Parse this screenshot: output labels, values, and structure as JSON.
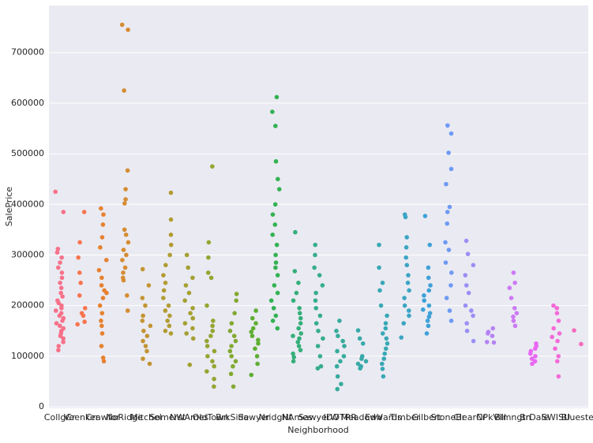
{
  "chart_data": {
    "type": "strip",
    "x_label": "Neighborhood",
    "y_label": "SalePrice",
    "categories": [
      "CollgCr",
      "Veenker",
      "Crawfor",
      "NoRidge",
      "Mitchel",
      "Somerst",
      "NWAmes",
      "OldTown",
      "BrkSide",
      "Sawyer",
      "NridgHt",
      "NAmes",
      "SawyerW",
      "IDOTRR",
      "MeadowV",
      "Edwards",
      "Timber",
      "Gilbert",
      "StoneBr",
      "ClearCr",
      "NPkVill",
      "Blmngtn",
      "BrDale",
      "SWISU",
      "Blueste"
    ],
    "colors": [
      "#f77189",
      "#f7754f",
      "#e6812f",
      "#d58c32",
      "#c39532",
      "#b29c32",
      "#a4a031",
      "#95a531",
      "#82a931",
      "#5eae31",
      "#32b252",
      "#34af7a",
      "#35ad8e",
      "#36ab9c",
      "#37aaa9",
      "#38a8b5",
      "#3ba5c3",
      "#3ea1d8",
      "#6e9af4",
      "#9a8ff4",
      "#b583f4",
      "#cc79f4",
      "#e867f4",
      "#f46ad8",
      "#f56bbe"
    ],
    "values": [
      [
        425000,
        385000,
        312000,
        305000,
        295000,
        285000,
        275000,
        265000,
        255000,
        245000,
        235000,
        225000,
        218000,
        210000,
        205000,
        200000,
        195000,
        190000,
        185000,
        180000,
        175000,
        170000,
        165000,
        160000,
        155000,
        150000,
        145000,
        140000,
        135000,
        128000,
        120000,
        112000
      ],
      [
        385000,
        325000,
        295000,
        265000,
        245000,
        220000,
        195000,
        185000,
        180000,
        168000,
        163000
      ],
      [
        392000,
        380000,
        360000,
        335000,
        315000,
        290000,
        270000,
        255000,
        240000,
        230000,
        225000,
        215000,
        200000,
        185000,
        170000,
        160000,
        145000,
        120000,
        97000,
        90000
      ],
      [
        755000,
        745000,
        625000,
        467000,
        430000,
        410000,
        402000,
        350000,
        340000,
        325000,
        310000,
        300000,
        290000,
        275000,
        265000,
        255000,
        250000,
        220000,
        190000
      ],
      [
        272000,
        240000,
        215000,
        200000,
        180000,
        170000,
        160000,
        150000,
        140000,
        130000,
        120000,
        110000,
        95000,
        85000
      ],
      [
        423000,
        370000,
        340000,
        320000,
        300000,
        280000,
        260000,
        245000,
        230000,
        215000,
        200000,
        190000,
        180000,
        170000,
        160000,
        150000,
        145000
      ],
      [
        300000,
        275000,
        255000,
        240000,
        225000,
        210000,
        195000,
        185000,
        175000,
        165000,
        155000,
        145000,
        135000,
        83000
      ],
      [
        475000,
        325000,
        295000,
        265000,
        255000,
        200000,
        170000,
        160000,
        150000,
        140000,
        130000,
        120000,
        110000,
        100000,
        90000,
        80000,
        70000,
        55000,
        40000
      ],
      [
        223000,
        210000,
        185000,
        165000,
        150000,
        140000,
        130000,
        120000,
        110000,
        100000,
        90000,
        80000,
        65000,
        40000
      ],
      [
        190000,
        175000,
        165000,
        155000,
        148000,
        140000,
        132000,
        125000,
        115000,
        100000,
        85000,
        63000
      ],
      [
        612000,
        583000,
        555000,
        485000,
        450000,
        430000,
        400000,
        380000,
        360000,
        340000,
        320000,
        300000,
        285000,
        275000,
        260000,
        240000,
        225000,
        210000,
        195000,
        180000,
        170000,
        155000
      ],
      [
        345000,
        268000,
        245000,
        225000,
        210000,
        195000,
        185000,
        175000,
        165000,
        155000,
        145000,
        140000,
        135000,
        128000,
        120000,
        112000,
        105000,
        98000,
        90000
      ],
      [
        320000,
        300000,
        275000,
        260000,
        240000,
        225000,
        210000,
        195000,
        180000,
        165000,
        150000,
        135000,
        120000,
        100000,
        80000,
        76000
      ],
      [
        170000,
        150000,
        140000,
        130000,
        120000,
        110000,
        100000,
        90000,
        80000,
        60000,
        45000,
        35000
      ],
      [
        151000,
        135000,
        125000,
        100000,
        95000,
        90000,
        85000,
        80000,
        76000
      ],
      [
        320000,
        275000,
        245000,
        230000,
        200000,
        180000,
        165000,
        155000,
        145000,
        135000,
        125000,
        115000,
        105000,
        95000,
        85000,
        75000,
        60000
      ],
      [
        380000,
        375000,
        335000,
        315000,
        295000,
        280000,
        260000,
        245000,
        230000,
        215000,
        200000,
        190000,
        180000,
        165000,
        137000
      ],
      [
        377000,
        320000,
        275000,
        255000,
        240000,
        230000,
        220000,
        210000,
        200000,
        192000,
        185000,
        178000,
        170000,
        160000,
        145000
      ],
      [
        556000,
        540000,
        502000,
        470000,
        440000,
        395000,
        385000,
        362000,
        325000,
        310000,
        285000,
        265000,
        240000,
        215000,
        190000,
        170000
      ],
      [
        328000,
        302000,
        280000,
        260000,
        240000,
        225000,
        200000,
        190000,
        180000,
        165000,
        150000,
        130000
      ],
      [
        155000,
        148000,
        145000,
        140000,
        128000,
        127000
      ],
      [
        265000,
        245000,
        235000,
        215000,
        195000,
        185000,
        178000,
        170000,
        160000
      ],
      [
        125000,
        120000,
        115000,
        110000,
        105000,
        100000,
        95000,
        90000,
        85000
      ],
      [
        200000,
        195000,
        185000,
        170000,
        155000,
        145000,
        138000,
        130000,
        115000,
        100000,
        90000,
        60000
      ],
      [
        151000,
        124000
      ]
    ],
    "ylim": [
      -3000,
      793000
    ],
    "yticks": [
      0,
      100000,
      200000,
      300000,
      400000,
      500000,
      600000,
      700000
    ],
    "grid": true
  }
}
